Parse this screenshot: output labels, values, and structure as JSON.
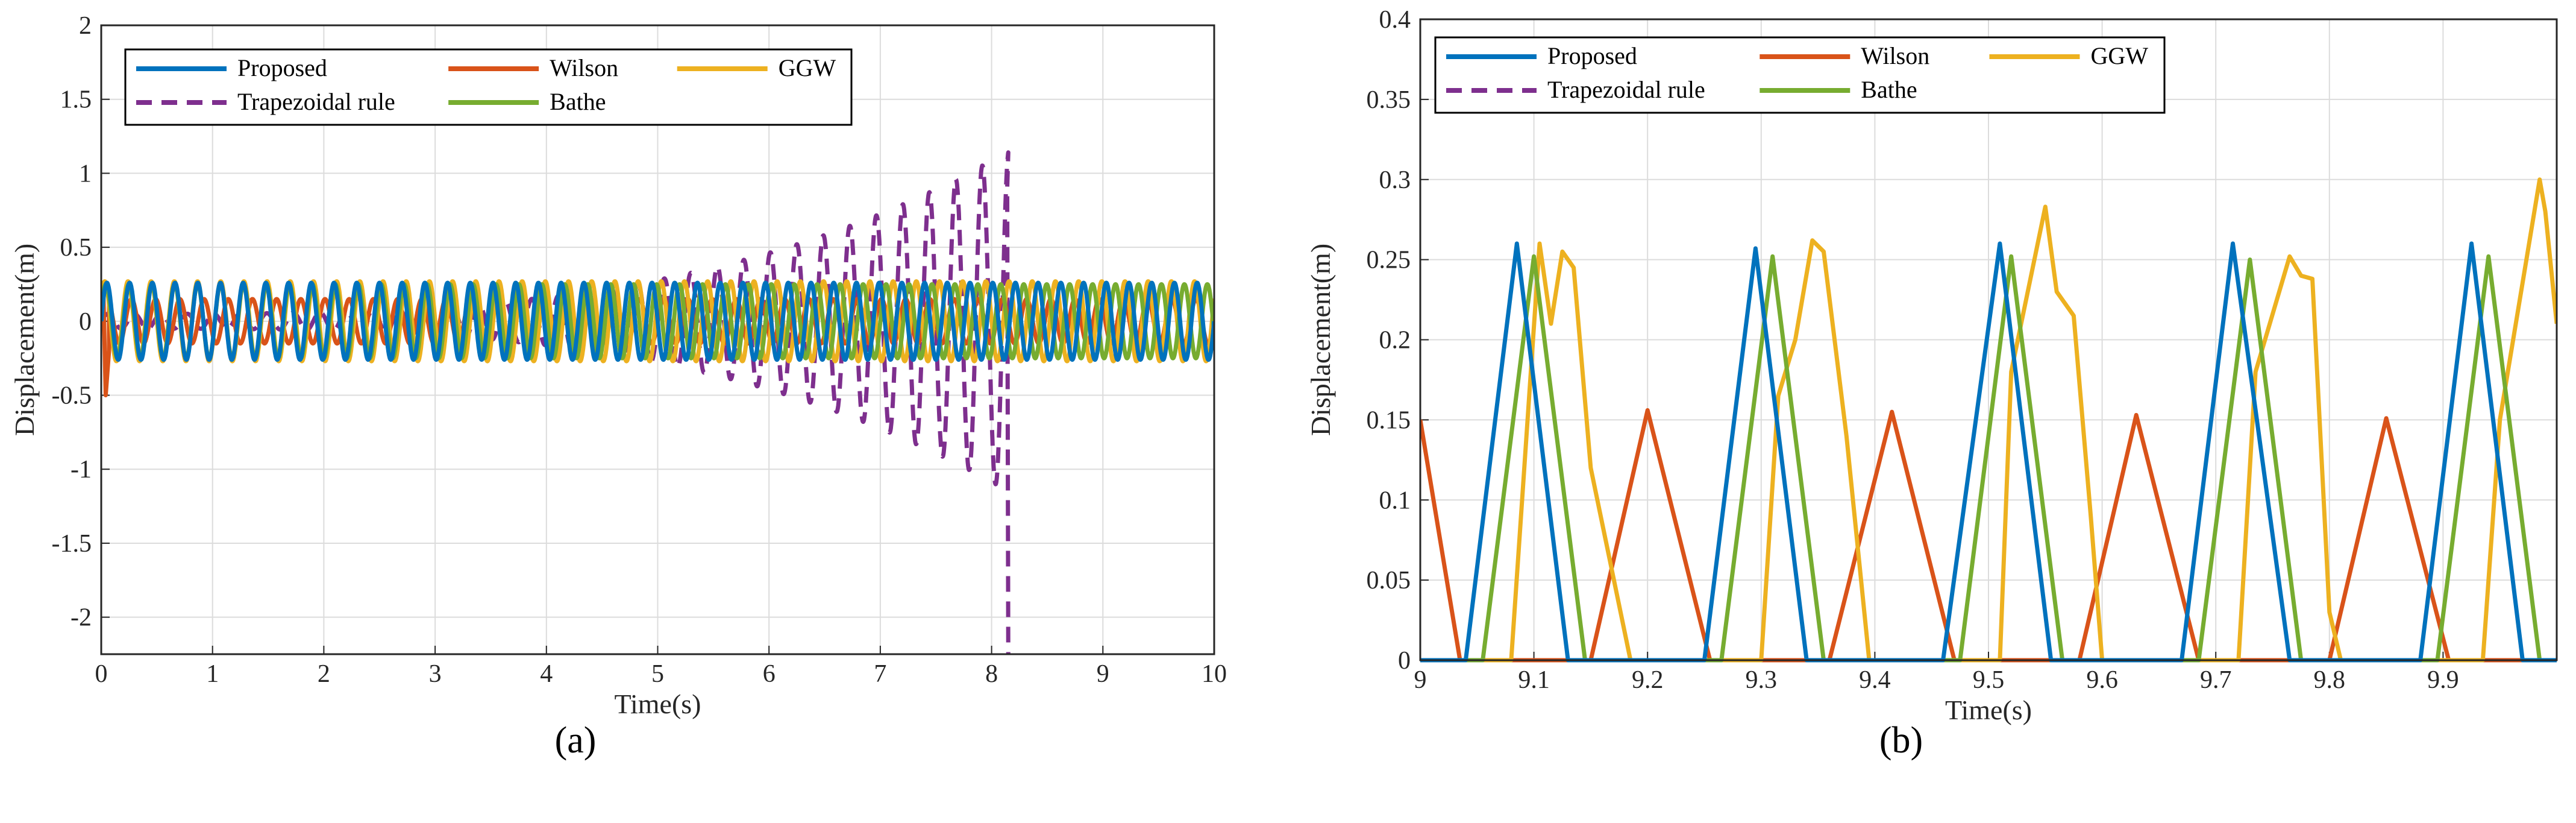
{
  "colors": {
    "Proposed": "#0072BD",
    "Wilson": "#D95319",
    "GGW": "#EDB120",
    "Trapezoidal rule": "#7E2F8E",
    "Bathe": "#77AC30"
  },
  "chart_data": [
    {
      "type": "line",
      "panel_label": "(a)",
      "title": "",
      "xlabel": "Time(s)",
      "ylabel": "Displacement(m)",
      "xlim": [
        0,
        10
      ],
      "ylim": [
        -2.25,
        2
      ],
      "xticks": [
        "0",
        "1",
        "2",
        "3",
        "4",
        "5",
        "6",
        "7",
        "8",
        "9",
        "10"
      ],
      "yticks": [
        "2",
        "1.5",
        "1",
        "0.5",
        "0",
        "-0.5",
        "-1",
        "-1.5",
        "-2"
      ],
      "yticks_values": [
        2,
        1.5,
        1,
        0.5,
        0,
        -0.5,
        -1,
        -1.5,
        -2
      ],
      "xticks_values": [
        0,
        1,
        2,
        3,
        4,
        5,
        6,
        7,
        8,
        9,
        10
      ],
      "grid": true,
      "legend": {
        "position": "top-left",
        "entries": [
          "Proposed",
          "Wilson",
          "GGW",
          "Trapezoidal rule",
          "Bathe"
        ]
      },
      "series": [
        {
          "name": "Proposed",
          "style": "solid",
          "description_amplitude": 0.26,
          "frequency_hz": 4.9,
          "range": [
            0,
            10
          ]
        },
        {
          "name": "Wilson",
          "style": "solid",
          "amplitude": 0.15,
          "frequency_hz": 4.6,
          "range": [
            0,
            10
          ]
        },
        {
          "name": "GGW",
          "style": "solid",
          "amplitude": 0.27,
          "frequency_hz": 4.8,
          "range": [
            0,
            10
          ]
        },
        {
          "name": "Trapezoidal rule",
          "style": "dashed",
          "amplitude_start": 0.05,
          "amplitude_end": 1.15,
          "frequency_hz": 4.2,
          "range": [
            0,
            8.15
          ]
        },
        {
          "name": "Bathe",
          "style": "solid",
          "amplitude": 0.25,
          "frequency_hz": 4.85,
          "range": [
            0,
            10
          ]
        }
      ]
    },
    {
      "type": "line",
      "panel_label": "(b)",
      "title": "",
      "xlabel": "Time(s)",
      "ylabel": "Displacement(m)",
      "xlim": [
        9,
        10
      ],
      "ylim": [
        0,
        0.4
      ],
      "xticks": [
        "9",
        "9.1",
        "9.2",
        "9.3",
        "9.4",
        "9.5",
        "9.6",
        "9.7",
        "9.8",
        "9.9"
      ],
      "xticks_values": [
        9,
        9.1,
        9.2,
        9.3,
        9.4,
        9.5,
        9.6,
        9.7,
        9.8,
        9.9
      ],
      "yticks": [
        "0.4",
        "0.35",
        "0.3",
        "0.25",
        "0.2",
        "0.15",
        "0.1",
        "0.05",
        "0"
      ],
      "yticks_values": [
        0.4,
        0.35,
        0.3,
        0.25,
        0.2,
        0.15,
        0.1,
        0.05,
        0
      ],
      "grid": true,
      "legend": {
        "position": "top-left",
        "entries": [
          "Proposed",
          "Wilson",
          "GGW",
          "Trapezoidal rule",
          "Bathe"
        ]
      },
      "series": [
        {
          "name": "Proposed",
          "style": "solid",
          "peaks": [
            [
              9.04,
              0
            ],
            [
              9.085,
              0.26
            ],
            [
              9.13,
              0
            ],
            [
              9.25,
              0
            ],
            [
              9.295,
              0.257
            ],
            [
              9.34,
              0
            ],
            [
              9.46,
              0
            ],
            [
              9.51,
              0.26
            ],
            [
              9.555,
              0
            ],
            [
              9.67,
              0
            ],
            [
              9.715,
              0.26
            ],
            [
              9.765,
              0
            ],
            [
              9.88,
              0
            ],
            [
              9.925,
              0.26
            ],
            [
              9.97,
              0
            ]
          ]
        },
        {
          "name": "Wilson",
          "style": "solid",
          "peaks": [
            [
              9.0,
              0.15
            ],
            [
              9.035,
              0
            ],
            [
              9.15,
              0
            ],
            [
              9.2,
              0.156
            ],
            [
              9.255,
              0
            ],
            [
              9.36,
              0
            ],
            [
              9.415,
              0.155
            ],
            [
              9.47,
              0
            ],
            [
              9.58,
              0
            ],
            [
              9.63,
              0.153
            ],
            [
              9.685,
              0
            ],
            [
              9.8,
              0
            ],
            [
              9.85,
              0.151
            ],
            [
              9.905,
              0
            ]
          ]
        },
        {
          "name": "GGW",
          "style": "solid",
          "peaks": [
            [
              9.08,
              0
            ],
            [
              9.105,
              0.26
            ],
            [
              9.115,
              0.21
            ],
            [
              9.125,
              0.255
            ],
            [
              9.135,
              0.245
            ],
            [
              9.15,
              0.12
            ],
            [
              9.185,
              0
            ],
            [
              9.3,
              0
            ],
            [
              9.315,
              0.165
            ],
            [
              9.33,
              0.2
            ],
            [
              9.345,
              0.262
            ],
            [
              9.355,
              0.255
            ],
            [
              9.375,
              0.14
            ],
            [
              9.395,
              0
            ],
            [
              9.51,
              0
            ],
            [
              9.52,
              0.18
            ],
            [
              9.55,
              0.283
            ],
            [
              9.56,
              0.23
            ],
            [
              9.575,
              0.215
            ],
            [
              9.59,
              0.09
            ],
            [
              9.6,
              0
            ],
            [
              9.72,
              0
            ],
            [
              9.735,
              0.18
            ],
            [
              9.765,
              0.252
            ],
            [
              9.775,
              0.24
            ],
            [
              9.785,
              0.238
            ],
            [
              9.8,
              0.03
            ],
            [
              9.81,
              0
            ],
            [
              9.935,
              0
            ],
            [
              9.95,
              0.15
            ],
            [
              9.985,
              0.3
            ],
            [
              9.99,
              0.28
            ],
            [
              10.0,
              0.21
            ]
          ]
        },
        {
          "name": "Trapezoidal rule",
          "style": "dashed",
          "peaks": [
            [
              9.0,
              0
            ],
            [
              10.0,
              0
            ]
          ]
        },
        {
          "name": "Bathe",
          "style": "solid",
          "peaks": [
            [
              9.055,
              0
            ],
            [
              9.1,
              0.252
            ],
            [
              9.145,
              0
            ],
            [
              9.265,
              0
            ],
            [
              9.31,
              0.252
            ],
            [
              9.355,
              0
            ],
            [
              9.475,
              0
            ],
            [
              9.52,
              0.252
            ],
            [
              9.565,
              0
            ],
            [
              9.685,
              0
            ],
            [
              9.73,
              0.25
            ],
            [
              9.775,
              0
            ],
            [
              9.895,
              0
            ],
            [
              9.94,
              0.252
            ],
            [
              9.985,
              0
            ]
          ]
        }
      ]
    }
  ]
}
